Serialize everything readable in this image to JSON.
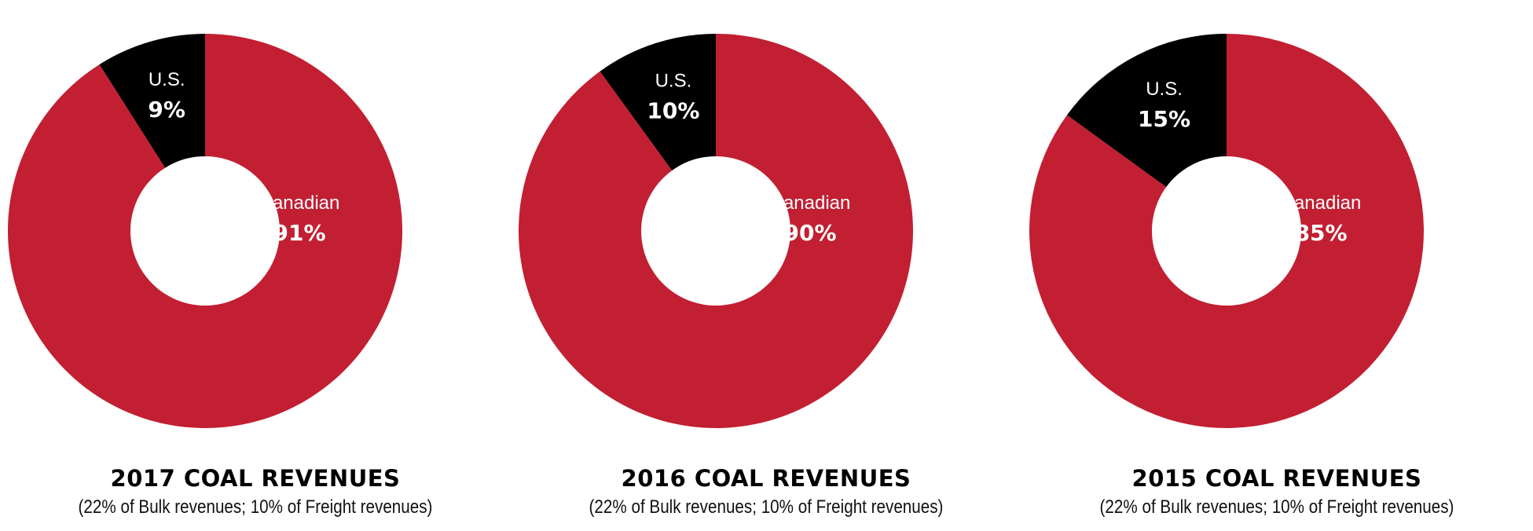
{
  "colors": {
    "canadian": "#c21f32",
    "us": "#000000",
    "hole": "#ffffff"
  },
  "chart_data": [
    {
      "type": "pie",
      "variant": "donut",
      "title": "2017 COAL REVENUES",
      "subtitle": "(22% of Bulk revenues; 10% of Freight revenues)",
      "slices": [
        {
          "name": "U.S.",
          "value": 9,
          "value_label": "9%",
          "color": "#000000"
        },
        {
          "name": "Canadian",
          "value": 91,
          "value_label": "91%",
          "color": "#c21f32"
        }
      ]
    },
    {
      "type": "pie",
      "variant": "donut",
      "title": "2016 COAL REVENUES",
      "subtitle": "(22% of Bulk revenues; 10% of Freight revenues)",
      "slices": [
        {
          "name": "U.S.",
          "value": 10,
          "value_label": "10%",
          "color": "#000000"
        },
        {
          "name": "Canadian",
          "value": 90,
          "value_label": "90%",
          "color": "#c21f32"
        }
      ]
    },
    {
      "type": "pie",
      "variant": "donut",
      "title": "2015 COAL REVENUES",
      "subtitle": "(22% of Bulk revenues; 10% of Freight revenues)",
      "slices": [
        {
          "name": "U.S.",
          "value": 15,
          "value_label": "15%",
          "color": "#000000"
        },
        {
          "name": "Canadian",
          "value": 85,
          "value_label": "85%",
          "color": "#c21f32"
        }
      ]
    }
  ]
}
